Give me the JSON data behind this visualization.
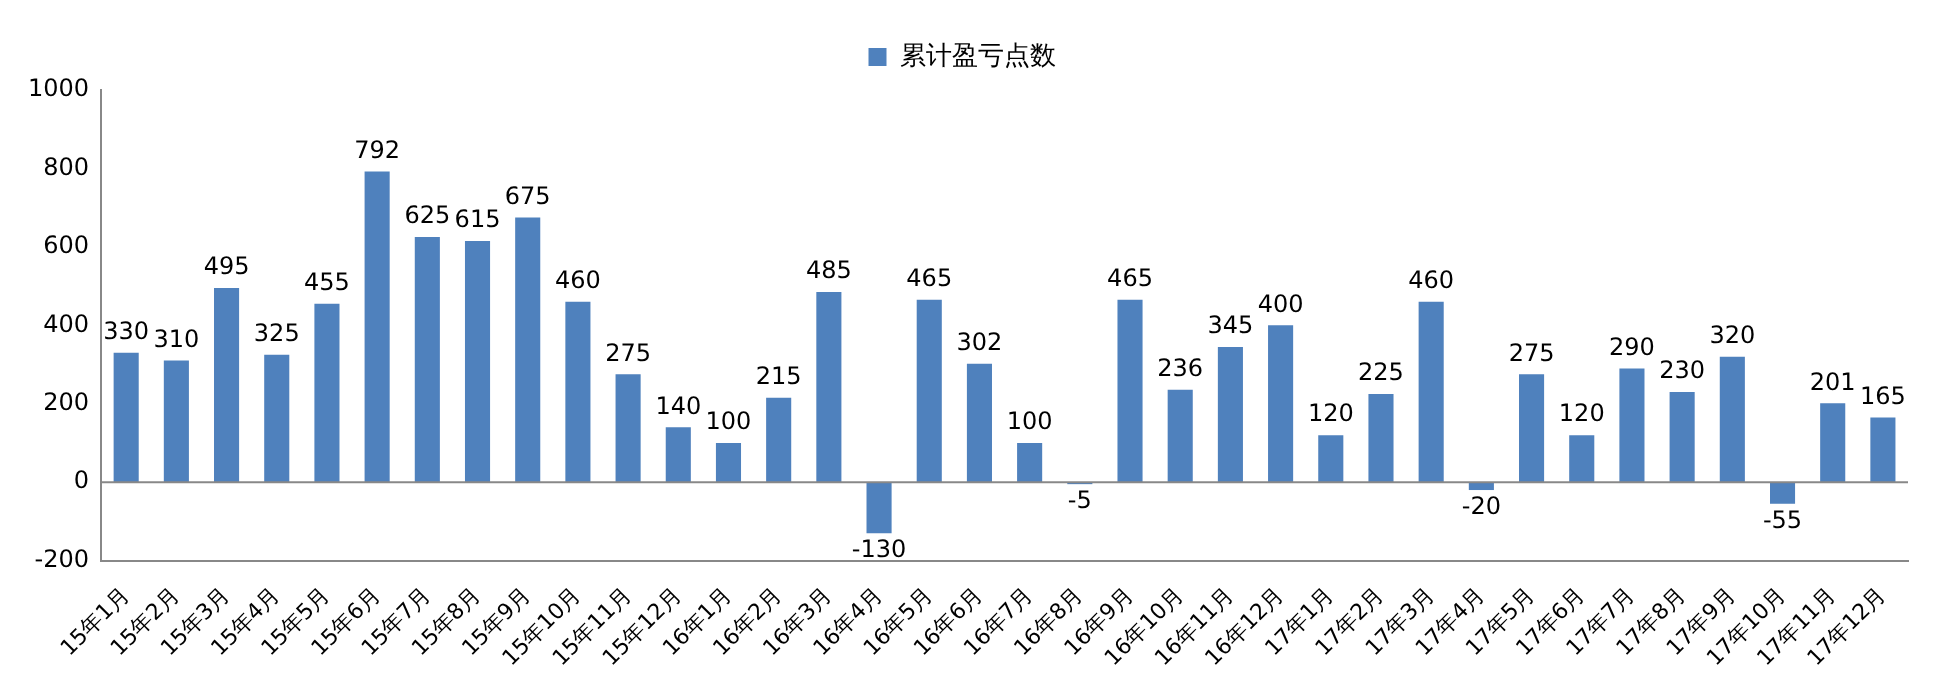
{
  "chart_data": {
    "type": "bar",
    "categories": [
      "15年1月",
      "15年2月",
      "15年3月",
      "15年4月",
      "15年5月",
      "15年6月",
      "15年7月",
      "15年8月",
      "15年9月",
      "15年10月",
      "15年11月",
      "15年12月",
      "16年1月",
      "16年2月",
      "16年3月",
      "16年4月",
      "16年5月",
      "16年6月",
      "16年7月",
      "16年8月",
      "16年9月",
      "16年10月",
      "16年11月",
      "16年12月",
      "17年1月",
      "17年2月",
      "17年3月",
      "17年4月",
      "17年5月",
      "17年6月",
      "17年7月",
      "17年8月",
      "17年9月",
      "17年10月",
      "17年11月",
      "17年12月"
    ],
    "series": [
      {
        "name": "累计盈亏点数",
        "color": "#4f81bd",
        "values": [
          330,
          310,
          495,
          325,
          455,
          792,
          625,
          615,
          675,
          460,
          275,
          140,
          100,
          215,
          485,
          -130,
          465,
          302,
          100,
          -5,
          465,
          236,
          345,
          400,
          120,
          225,
          460,
          -20,
          275,
          120,
          290,
          230,
          320,
          -55,
          201,
          165
        ]
      }
    ],
    "ref_lines": [
      {
        "axis": "y",
        "value": 0,
        "color": "#888888"
      }
    ],
    "ylim": [
      -200,
      1000
    ],
    "yticks": [
      -200,
      0,
      200,
      400,
      600,
      800,
      1000
    ],
    "grid": false,
    "legend": "top",
    "data_labels": true
  }
}
